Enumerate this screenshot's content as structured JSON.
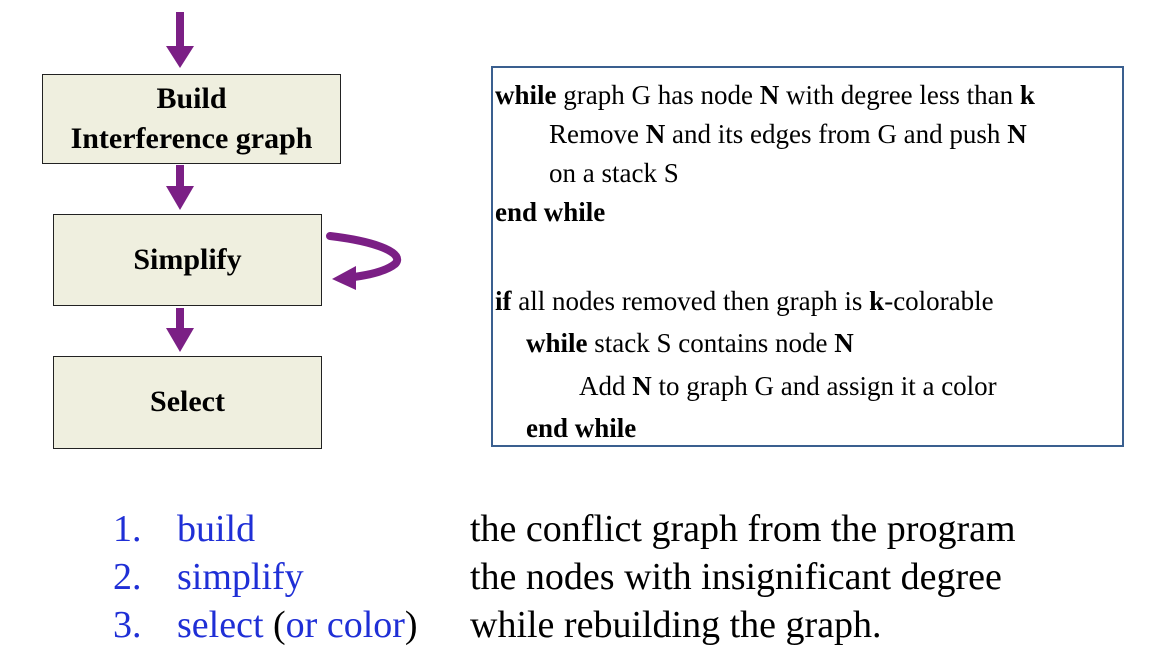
{
  "flow": {
    "build_line1": "Build",
    "build_line2": "Interference graph",
    "simplify": "Simplify",
    "select": "Select"
  },
  "colors": {
    "arrow": "#7b1f85",
    "box_fill": "#efefdf",
    "algo_border": "#3a5f8f",
    "step_term": "#1f2fd6"
  },
  "algorithm": {
    "l1_kw": "while",
    "l1_a": " graph G has node ",
    "l1_n": "N",
    "l1_b": "  with degree less than ",
    "l1_k": "k",
    "l2_a": "Remove ",
    "l2_n": "N",
    "l2_b": "  and its edges from G and push ",
    "l2_n2": "N",
    "l3": "on a stack S",
    "l4": "end while",
    "l5_kw": "if",
    "l5_a": " all nodes removed then graph is ",
    "l5_k": "k",
    "l5_b": "-colorable",
    "l6_kw": "while",
    "l6_a": " stack S contains node ",
    "l6_n": "N",
    "l7_a": "Add ",
    "l7_n": "N",
    "l7_b": "  to graph G and assign it a color",
    "l8": "end while"
  },
  "steps": [
    {
      "num": "1.",
      "term": "build",
      "paren": "",
      "desc": "the conflict graph from the program"
    },
    {
      "num": "2.",
      "term": "simplify",
      "paren": "",
      "desc": "the nodes with insignificant degree"
    },
    {
      "num": "3.",
      "term": "select",
      "paren_open": " (",
      "term2": "or color",
      "paren_close": ")",
      "desc": "while rebuilding the graph."
    }
  ]
}
